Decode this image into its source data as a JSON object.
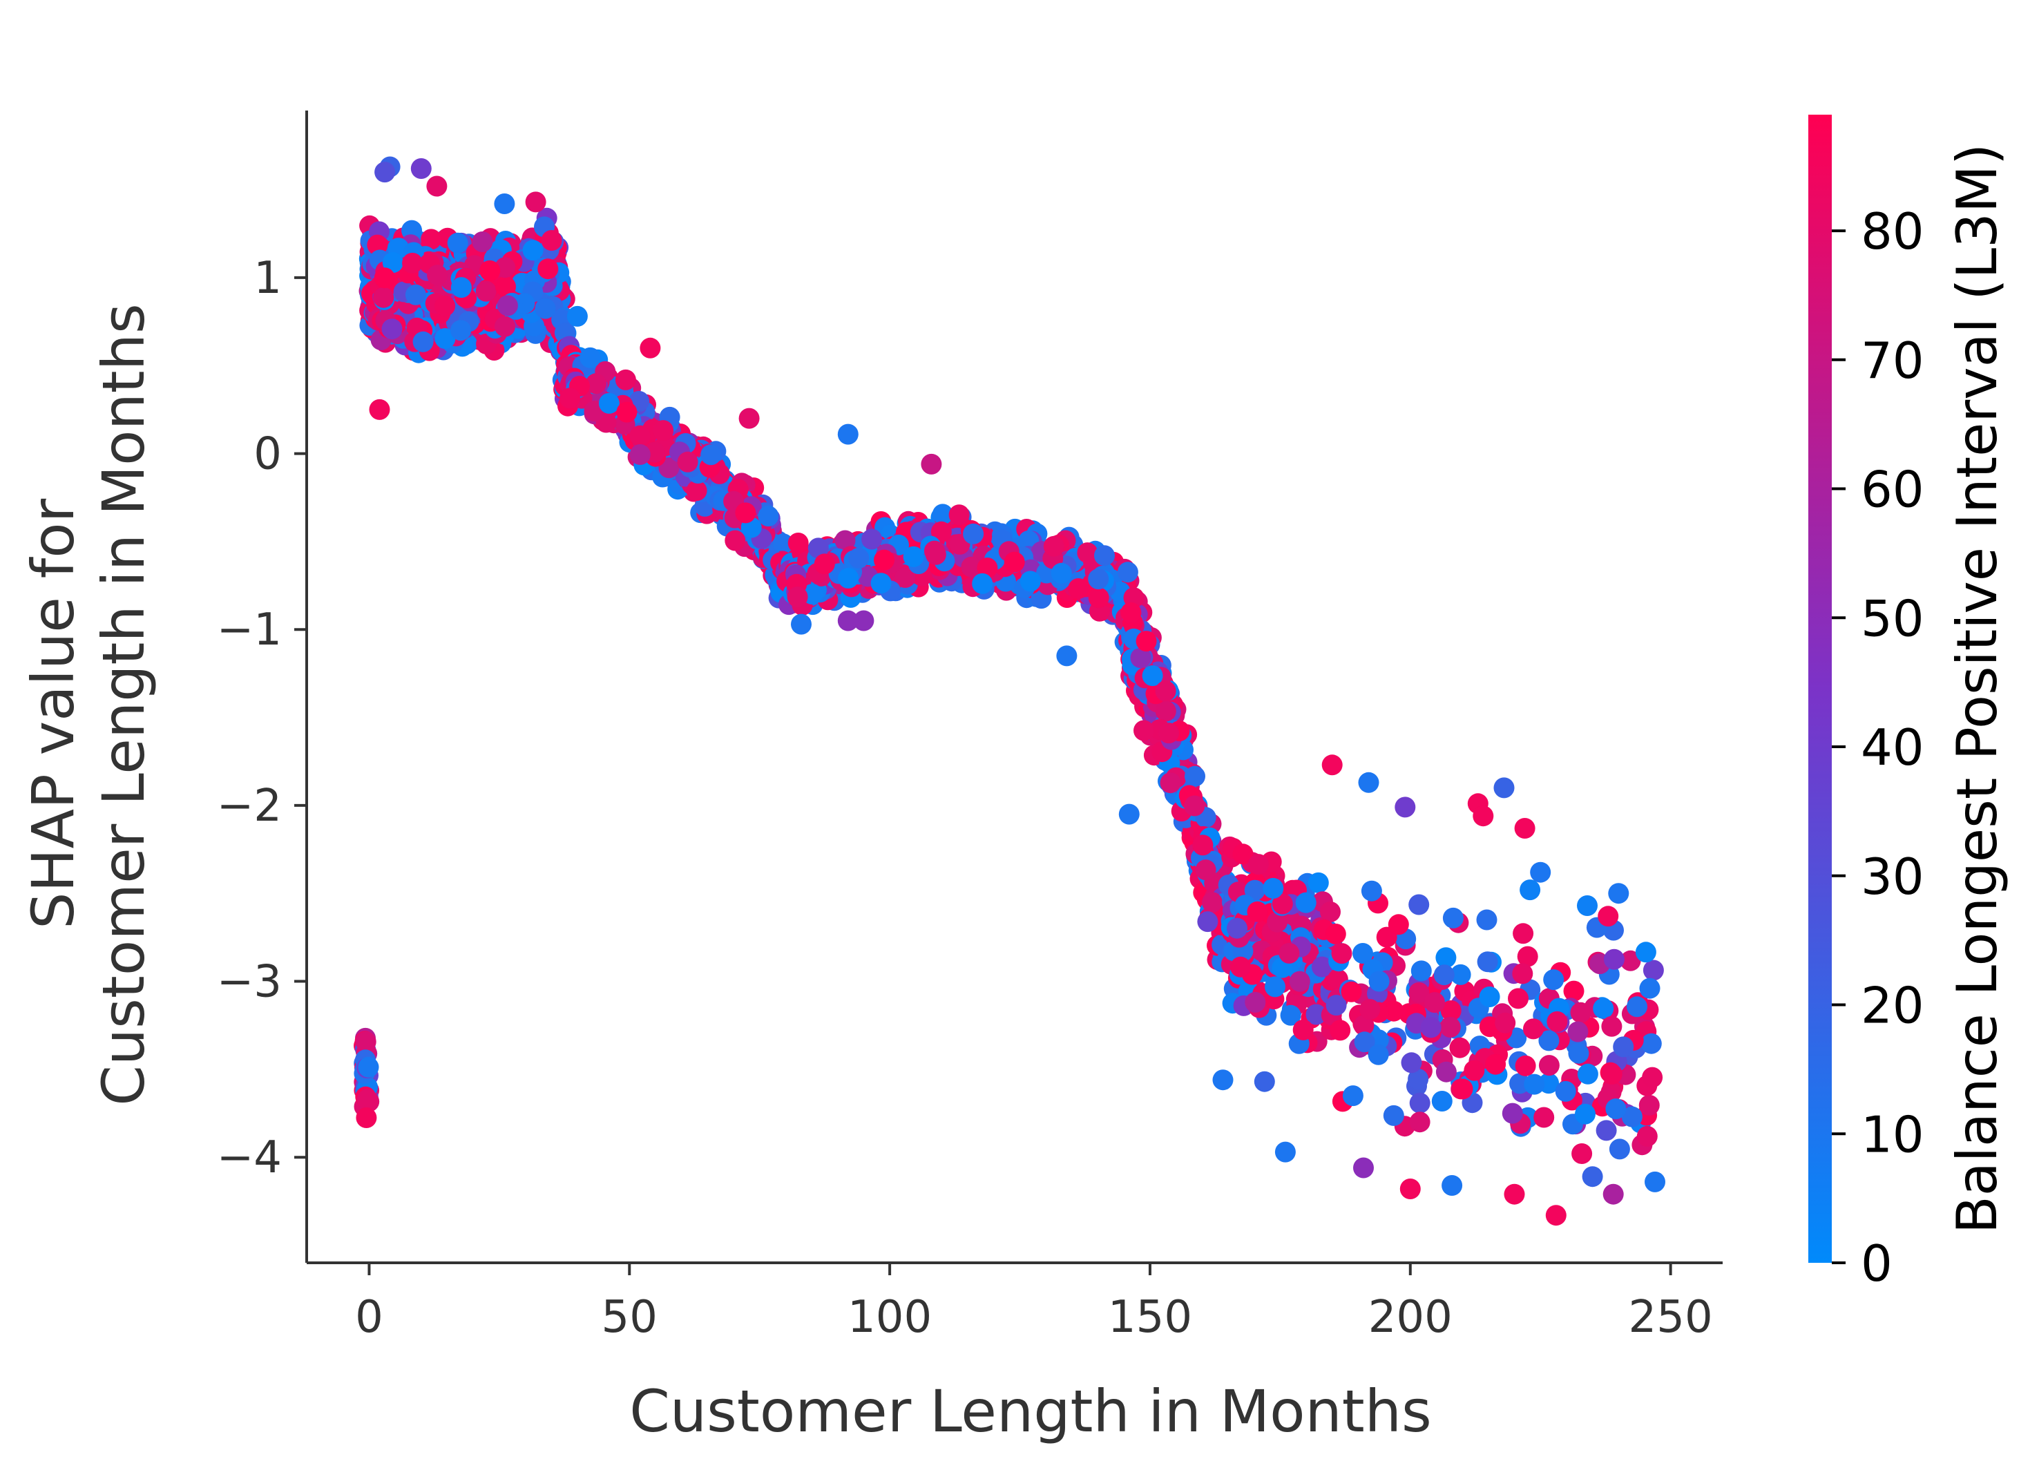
{
  "chart_data": {
    "type": "scatter",
    "title": "",
    "xlabel": "Customer Length in Months",
    "ylabel_lines": [
      "SHAP value for",
      "Customer Length in Months"
    ],
    "xlim": [
      -12,
      260
    ],
    "ylim": [
      -4.6,
      1.95
    ],
    "x_ticks": [
      0,
      50,
      100,
      150,
      200,
      250
    ],
    "x_tick_labels": [
      "0",
      "50",
      "100",
      "150",
      "200",
      "250"
    ],
    "y_ticks": [
      1,
      0,
      -1,
      -2,
      -3,
      -4
    ],
    "y_tick_labels": [
      "1",
      "0",
      "−1",
      "−2",
      "−3",
      "−4"
    ],
    "grid": false,
    "colorbar": {
      "label": "Balance Longest Positive Interval (L3M)",
      "range": [
        0,
        89
      ],
      "ticks": [
        0,
        10,
        20,
        30,
        40,
        50,
        60,
        70,
        80
      ],
      "tick_labels": [
        "0",
        "10",
        "20",
        "30",
        "40",
        "50",
        "60",
        "70",
        "80"
      ],
      "colormap": [
        "#008afb",
        "#7b33c8",
        "#ff0052"
      ]
    },
    "trend": [
      [
        0,
        0.95
      ],
      [
        20,
        0.9
      ],
      [
        36,
        1.0
      ],
      [
        38,
        0.5
      ],
      [
        50,
        0.2
      ],
      [
        75,
        -0.4
      ],
      [
        80,
        -0.7
      ],
      [
        110,
        -0.55
      ],
      [
        140,
        -0.7
      ],
      [
        145,
        -0.8
      ],
      [
        148,
        -1.2
      ],
      [
        153,
        -1.5
      ],
      [
        158,
        -2.0
      ],
      [
        163,
        -2.6
      ],
      [
        175,
        -2.8
      ],
      [
        200,
        -3.2
      ],
      [
        246,
        -3.5
      ]
    ],
    "scatter_note": "Dense cloud of several thousand points; a representative sample of explicitly read points is listed in points",
    "points": [
      [
        4,
        1.63,
        20
      ],
      [
        3,
        1.6,
        30
      ],
      [
        10,
        1.62,
        40
      ],
      [
        13,
        1.52,
        80
      ],
      [
        2,
        0.25,
        85
      ],
      [
        26,
        1.42,
        10
      ],
      [
        32,
        1.43,
        80
      ],
      [
        40,
        0.78,
        5
      ],
      [
        54,
        0.6,
        85
      ],
      [
        73,
        0.2,
        80
      ],
      [
        92,
        0.11,
        10
      ],
      [
        108,
        -0.06,
        70
      ],
      [
        95,
        -0.95,
        50
      ],
      [
        83,
        -0.97,
        10
      ],
      [
        92,
        -0.95,
        50
      ],
      [
        134,
        -1.15,
        10
      ],
      [
        153,
        -1.35,
        80
      ],
      [
        146,
        -2.05,
        10
      ],
      [
        185,
        -1.77,
        85
      ],
      [
        192,
        -1.87,
        10
      ],
      [
        199,
        -2.01,
        40
      ],
      [
        218,
        -1.9,
        20
      ],
      [
        222,
        -2.13,
        85
      ],
      [
        213,
        -1.99,
        85
      ],
      [
        214,
        -2.06,
        85
      ],
      [
        225,
        -2.38,
        10
      ],
      [
        223,
        -2.48,
        5
      ],
      [
        234,
        -2.57,
        5
      ],
      [
        240,
        -2.5,
        10
      ],
      [
        238,
        -2.63,
        85
      ],
      [
        194,
        -3.0,
        10
      ],
      [
        189,
        -3.65,
        10
      ],
      [
        191,
        -4.06,
        50
      ],
      [
        200,
        -4.18,
        85
      ],
      [
        208,
        -4.16,
        10
      ],
      [
        228,
        -4.33,
        85
      ],
      [
        235,
        -4.11,
        20
      ],
      [
        239,
        -4.21,
        60
      ],
      [
        246,
        -3.04,
        10
      ],
      [
        247,
        -4.14,
        10
      ],
      [
        220,
        -4.21,
        85
      ],
      [
        176,
        -3.97,
        10
      ],
      [
        164,
        -3.56,
        10
      ],
      [
        172,
        -3.57,
        20
      ]
    ]
  }
}
